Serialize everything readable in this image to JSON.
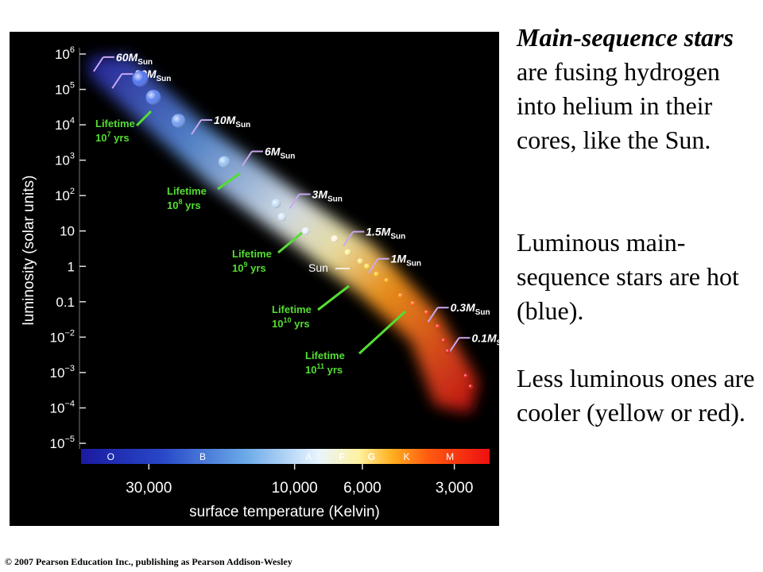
{
  "chart_data": {
    "type": "scatter",
    "title": "",
    "xlabel": "surface temperature (Kelvin)",
    "ylabel": "luminosity (solar units)",
    "x_scale": "log",
    "x_reversed": true,
    "y_scale": "log",
    "xlim": [
      50000,
      2300
    ],
    "ylim": [
      1e-05,
      1000000
    ],
    "y_ticks": [
      {
        "value": 1000000,
        "base": "10",
        "exp": "6"
      },
      {
        "value": 100000,
        "base": "10",
        "exp": "5"
      },
      {
        "value": 10000,
        "base": "10",
        "exp": "4"
      },
      {
        "value": 1000,
        "base": "10",
        "exp": "3"
      },
      {
        "value": 100,
        "base": "10",
        "exp": "2"
      },
      {
        "value": 10,
        "base": "10",
        "exp": ""
      },
      {
        "value": 1,
        "base": "1",
        "exp": ""
      },
      {
        "value": 0.1,
        "base": "0.1",
        "exp": ""
      },
      {
        "value": 0.01,
        "base": "10",
        "exp": "−2"
      },
      {
        "value": 0.001,
        "base": "10",
        "exp": "−3"
      },
      {
        "value": 0.0001,
        "base": "10",
        "exp": "−4"
      },
      {
        "value": 1e-05,
        "base": "10",
        "exp": "−5"
      }
    ],
    "x_ticks": [
      {
        "value": 30000,
        "label": "30,000"
      },
      {
        "value": 10000,
        "label": "10,000"
      },
      {
        "value": 6000,
        "label": "6,000"
      },
      {
        "value": 3000,
        "label": "3,000"
      }
    ],
    "spectral_classes": [
      {
        "label": "O",
        "temperature": 40000
      },
      {
        "label": "B",
        "temperature": 20000
      },
      {
        "label": "A",
        "temperature": 9000
      },
      {
        "label": "F",
        "temperature": 7000
      },
      {
        "label": "G",
        "temperature": 5600
      },
      {
        "label": "K",
        "temperature": 4300
      },
      {
        "label": "M",
        "temperature": 3100
      }
    ],
    "stars": [
      {
        "temperature": 32000,
        "luminosity": 200000,
        "color": "#5577ee"
      },
      {
        "temperature": 29000,
        "luminosity": 60000,
        "color": "#5f85ee"
      },
      {
        "temperature": 24000,
        "luminosity": 13000,
        "color": "#77a0f0"
      },
      {
        "temperature": 17000,
        "luminosity": 900,
        "color": "#9dc6f2"
      },
      {
        "temperature": 11500,
        "luminosity": 60,
        "color": "#c8e0f6"
      },
      {
        "temperature": 11000,
        "luminosity": 25,
        "color": "#d6e8f8"
      },
      {
        "temperature": 9200,
        "luminosity": 10,
        "color": "#e8f0fb"
      },
      {
        "temperature": 7400,
        "luminosity": 6,
        "color": "#fff5d8"
      },
      {
        "temperature": 6700,
        "luminosity": 2.5,
        "color": "#fff0a0"
      },
      {
        "temperature": 6100,
        "luminosity": 1.4,
        "color": "#ffe680"
      },
      {
        "temperature": 5800,
        "luminosity": 1,
        "color": "#ffdd55"
      },
      {
        "temperature": 5400,
        "luminosity": 0.6,
        "color": "#ffc83a"
      },
      {
        "temperature": 5000,
        "luminosity": 0.4,
        "color": "#ffaa22"
      },
      {
        "temperature": 4500,
        "luminosity": 0.15,
        "color": "#ff8a1a"
      },
      {
        "temperature": 4100,
        "luminosity": 0.09,
        "color": "#ff6a18"
      },
      {
        "temperature": 3700,
        "luminosity": 0.05,
        "color": "#ff4a14"
      },
      {
        "temperature": 3400,
        "luminosity": 0.02,
        "color": "#f2361a"
      },
      {
        "temperature": 3250,
        "luminosity": 0.008,
        "color": "#e82818"
      },
      {
        "temperature": 3150,
        "luminosity": 0.004,
        "color": "#e02018"
      },
      {
        "temperature": 2750,
        "luminosity": 0.0008,
        "color": "#d81a18"
      },
      {
        "temperature": 2650,
        "luminosity": 0.0004,
        "color": "#d01616"
      }
    ],
    "mass_labels": [
      {
        "value": "60",
        "luminosity": 600000,
        "temperature": 46000
      },
      {
        "value": "30",
        "luminosity": 200000,
        "temperature": 40000
      },
      {
        "value": "10",
        "luminosity": 10000,
        "temperature": 22000
      },
      {
        "value": "6",
        "luminosity": 1300,
        "temperature": 15000
      },
      {
        "value": "3",
        "luminosity": 80,
        "temperature": 10500
      },
      {
        "value": "1.5",
        "luminosity": 7,
        "temperature": 7000
      },
      {
        "value": "1",
        "luminosity": 1.2,
        "temperature": 5800
      },
      {
        "value": "0.3",
        "luminosity": 0.05,
        "temperature": 3700
      },
      {
        "value": "0.1",
        "luminosity": 0.007,
        "temperature": 3150
      }
    ],
    "mass_unit": "M",
    "mass_subscript": "Sun",
    "lifetimes": [
      {
        "label": "Lifetime",
        "base": "10",
        "exp": "7",
        "unit": "yrs"
      },
      {
        "label": "Lifetime",
        "base": "10",
        "exp": "8",
        "unit": "yrs"
      },
      {
        "label": "Lifetime",
        "base": "10",
        "exp": "9",
        "unit": "yrs"
      },
      {
        "label": "Lifetime",
        "base": "10",
        "exp": "10",
        "unit": "yrs"
      },
      {
        "label": "Lifetime",
        "base": "10",
        "exp": "11",
        "unit": "yrs"
      }
    ],
    "sun_label": "Sun",
    "colors": {
      "background": "#000000",
      "lifetime": "#55dd33",
      "mass_marker": "#c8a8f0",
      "text": "#ffffff"
    }
  },
  "side_text": {
    "p1_em": "Main-sequence stars",
    "p1_rest": " are fusing hydrogen into helium in their cores, like the Sun.",
    "p2": "Luminous main-sequence stars are hot (blue).",
    "p3": "Less luminous ones are cooler (yellow or red)."
  },
  "copyright": "© 2007 Pearson Education Inc., publishing as Pearson Addison-Wesley"
}
